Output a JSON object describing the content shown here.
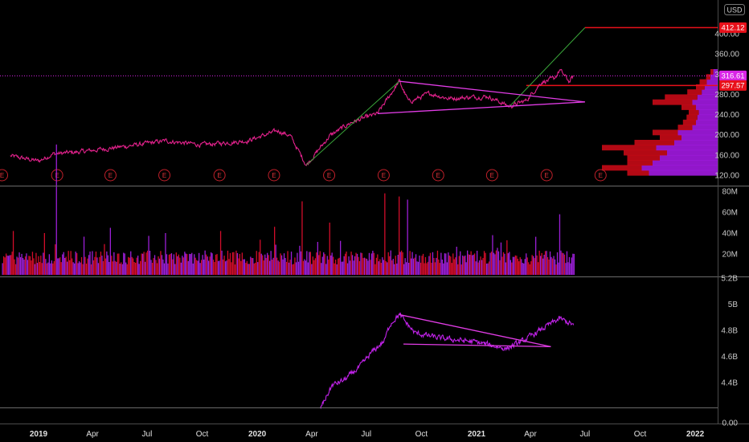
{
  "currency_label": "USD",
  "earnings_marker_label": "E",
  "colors": {
    "background": "#000000",
    "price": "#e0218a",
    "volume_up": "#9b1fd6",
    "volume_down": "#d10d2a",
    "obv": "#c022e8",
    "trendline_up": "#3aa63a",
    "pattern_lines": "#e23ce6",
    "level_line": "#e8101a",
    "current_price_tag": "#d925e6",
    "level_tag": "#e8101a",
    "profile_up": "#a11ae0",
    "profile_down": "#c70a16",
    "separator": "#6a6a6a"
  },
  "x_axis": {
    "ticks": [
      {
        "label": "2019",
        "bold": true
      },
      {
        "label": "Apr",
        "bold": false
      },
      {
        "label": "Jul",
        "bold": false
      },
      {
        "label": "Oct",
        "bold": false
      },
      {
        "label": "2020",
        "bold": true
      },
      {
        "label": "Apr",
        "bold": false
      },
      {
        "label": "Jul",
        "bold": false
      },
      {
        "label": "Oct",
        "bold": false
      },
      {
        "label": "2021",
        "bold": true
      },
      {
        "label": "Apr",
        "bold": false
      },
      {
        "label": "Jul",
        "bold": false
      },
      {
        "label": "Oct",
        "bold": false
      },
      {
        "label": "2022",
        "bold": true
      }
    ]
  },
  "chart_data": [
    {
      "type": "line",
      "pane": "price",
      "y_ticks": [
        "400.00",
        "360.00",
        "320.00",
        "280.00",
        "240.00",
        "200.00",
        "160.00",
        "120.00"
      ],
      "ylim": [
        100,
        430
      ],
      "current_price_label": "316.61",
      "current_price": 316.61,
      "levels": [
        {
          "label": "412.12",
          "value": 412.12
        },
        {
          "label": "297.57",
          "value": 297.57
        }
      ],
      "key_points": [
        {
          "date": "2018-11-15",
          "price": 158
        },
        {
          "date": "2019-01-01",
          "price": 148
        },
        {
          "date": "2019-01-25",
          "price": 162
        },
        {
          "date": "2019-03-10",
          "price": 166
        },
        {
          "date": "2019-06-01",
          "price": 178
        },
        {
          "date": "2019-08-01",
          "price": 188
        },
        {
          "date": "2019-10-01",
          "price": 180
        },
        {
          "date": "2019-12-15",
          "price": 188
        },
        {
          "date": "2020-02-05",
          "price": 208
        },
        {
          "date": "2020-02-25",
          "price": 198
        },
        {
          "date": "2020-03-23",
          "price": 140
        },
        {
          "date": "2020-05-01",
          "price": 198
        },
        {
          "date": "2020-06-05",
          "price": 224
        },
        {
          "date": "2020-07-20",
          "price": 242
        },
        {
          "date": "2020-08-25",
          "price": 306
        },
        {
          "date": "2020-09-10",
          "price": 265
        },
        {
          "date": "2020-10-15",
          "price": 282
        },
        {
          "date": "2020-11-15",
          "price": 272
        },
        {
          "date": "2021-01-20",
          "price": 276
        },
        {
          "date": "2021-02-25",
          "price": 256
        },
        {
          "date": "2021-03-25",
          "price": 268
        },
        {
          "date": "2021-04-20",
          "price": 305
        },
        {
          "date": "2021-05-10",
          "price": 310
        },
        {
          "date": "2021-05-20",
          "price": 328
        },
        {
          "date": "2021-06-05",
          "price": 305
        },
        {
          "date": "2021-06-12",
          "price": 316.61
        }
      ],
      "earnings_dates": [
        "2018-11-01",
        "2019-02-01",
        "2019-05-01",
        "2019-07-30",
        "2019-10-30",
        "2020-01-29",
        "2020-04-30",
        "2020-07-30",
        "2020-10-29",
        "2021-01-27",
        "2021-04-28",
        "2021-07-27"
      ],
      "trendlines": [
        {
          "kind": "up",
          "from": {
            "date": "2020-03-23",
            "price": 140
          },
          "to": {
            "date": "2020-08-25",
            "price": 306
          }
        },
        {
          "kind": "up",
          "from": {
            "date": "2021-02-25",
            "price": 256
          },
          "to": {
            "date": "2021-07-01",
            "price": 412.12
          }
        },
        {
          "kind": "pattern",
          "from": {
            "date": "2020-08-25",
            "price": 306
          },
          "to": {
            "date": "2021-07-01",
            "price": 265
          }
        },
        {
          "kind": "pattern",
          "from": {
            "date": "2020-07-20",
            "price": 242
          },
          "to": {
            "date": "2021-07-01",
            "price": 265
          }
        }
      ],
      "volume_profile": [
        {
          "price": 125,
          "up": 95,
          "down": 30
        },
        {
          "price": 135,
          "up": 105,
          "down": 55
        },
        {
          "price": 145,
          "up": 90,
          "down": 35
        },
        {
          "price": 155,
          "up": 80,
          "down": 45
        },
        {
          "price": 165,
          "up": 70,
          "down": 60
        },
        {
          "price": 175,
          "up": 85,
          "down": 75
        },
        {
          "price": 185,
          "up": 60,
          "down": 55
        },
        {
          "price": 195,
          "up": 50,
          "down": 30
        },
        {
          "price": 205,
          "up": 55,
          "down": 35
        },
        {
          "price": 215,
          "up": 35,
          "down": 20
        },
        {
          "price": 225,
          "up": 30,
          "down": 18
        },
        {
          "price": 235,
          "up": 28,
          "down": 15
        },
        {
          "price": 245,
          "up": 26,
          "down": 14
        },
        {
          "price": 255,
          "up": 30,
          "down": 20
        },
        {
          "price": 265,
          "up": 35,
          "down": 55
        },
        {
          "price": 275,
          "up": 28,
          "down": 45
        },
        {
          "price": 285,
          "up": 22,
          "down": 20
        },
        {
          "price": 295,
          "up": 18,
          "down": 12
        },
        {
          "price": 305,
          "up": 15,
          "down": 10
        },
        {
          "price": 315,
          "up": 10,
          "down": 6
        },
        {
          "price": 325,
          "up": 6,
          "down": 4
        }
      ]
    },
    {
      "type": "bar",
      "pane": "volume",
      "y_ticks": [
        "80M",
        "60M",
        "40M",
        "20M"
      ],
      "ylim": [
        0,
        80
      ],
      "unit": "M",
      "typical_volume": 18,
      "spikes": [
        {
          "date": "2018-11-20",
          "value": 42
        },
        {
          "date": "2019-01-10",
          "value": 40
        },
        {
          "date": "2019-01-31",
          "value": 78
        },
        {
          "date": "2019-05-01",
          "value": 45
        },
        {
          "date": "2019-07-31",
          "value": 40
        },
        {
          "date": "2019-10-31",
          "value": 42
        },
        {
          "date": "2020-01-30",
          "value": 46
        },
        {
          "date": "2020-03-16",
          "value": 44
        },
        {
          "date": "2020-05-01",
          "value": 50
        },
        {
          "date": "2020-07-31",
          "value": 78
        },
        {
          "date": "2020-08-25",
          "value": 75
        },
        {
          "date": "2020-09-08",
          "value": 72
        },
        {
          "date": "2021-01-28",
          "value": 38
        },
        {
          "date": "2021-05-20",
          "value": 58
        }
      ]
    },
    {
      "type": "line",
      "pane": "obv",
      "y_ticks": [
        "5.2B",
        "5B",
        "4.8B",
        "4.6B",
        "4.4B",
        "0.00"
      ],
      "ylim": [
        4.2,
        5.24
      ],
      "unit": "B",
      "key_points": [
        {
          "date": "2020-04-15",
          "value": 4.2
        },
        {
          "date": "2020-05-05",
          "value": 4.38
        },
        {
          "date": "2020-05-25",
          "value": 4.42
        },
        {
          "date": "2020-06-20",
          "value": 4.52
        },
        {
          "date": "2020-07-10",
          "value": 4.63
        },
        {
          "date": "2020-07-31",
          "value": 4.72
        },
        {
          "date": "2020-08-10",
          "value": 4.85
        },
        {
          "date": "2020-08-25",
          "value": 4.92
        },
        {
          "date": "2020-09-20",
          "value": 4.78
        },
        {
          "date": "2020-11-01",
          "value": 4.74
        },
        {
          "date": "2021-01-01",
          "value": 4.71
        },
        {
          "date": "2021-02-20",
          "value": 4.66
        },
        {
          "date": "2021-03-20",
          "value": 4.72
        },
        {
          "date": "2021-05-01",
          "value": 4.84
        },
        {
          "date": "2021-05-20",
          "value": 4.89
        },
        {
          "date": "2021-06-12",
          "value": 4.84
        }
      ],
      "trendlines": [
        {
          "from": {
            "date": "2020-08-25",
            "value": 4.92
          },
          "to": {
            "date": "2021-05-05",
            "value": 4.675
          }
        },
        {
          "from": {
            "date": "2020-09-01",
            "value": 4.695
          },
          "to": {
            "date": "2021-05-05",
            "value": 4.675
          }
        }
      ]
    }
  ]
}
